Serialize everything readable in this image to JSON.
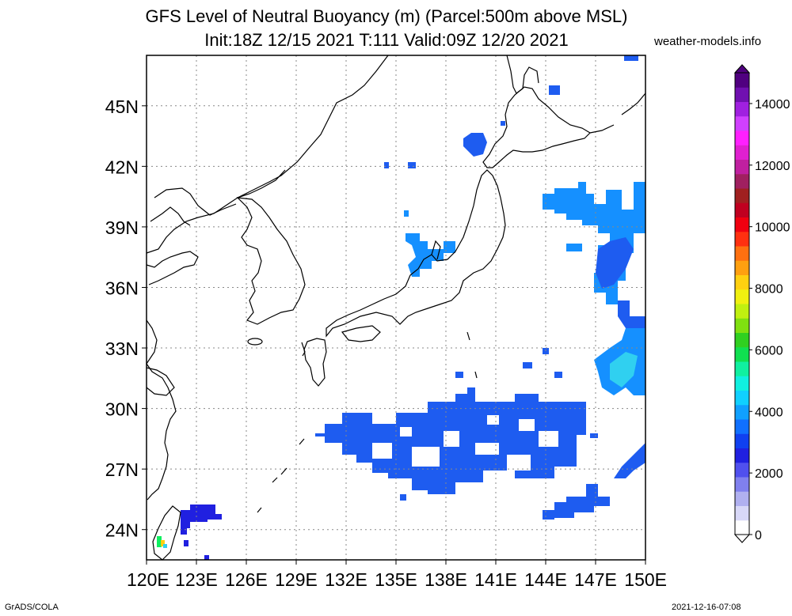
{
  "title": {
    "line1": "GFS Level of Neutral Buoyancy (m) (Parcel:500m above MSL)",
    "line2": "Init:18Z 12/15 2021 T:111 Valid:09Z 12/20 2021"
  },
  "credit": "weather-models.info",
  "footer": {
    "left": "GrADS/COLA",
    "right": "2021-12-16-07:08"
  },
  "map": {
    "lon_range": [
      120,
      150
    ],
    "lat_range": [
      22.5,
      47.5
    ],
    "lat_ticks": [
      {
        "value": 24,
        "label": "24N"
      },
      {
        "value": 27,
        "label": "27N"
      },
      {
        "value": 30,
        "label": "30N"
      },
      {
        "value": 33,
        "label": "33N"
      },
      {
        "value": 36,
        "label": "36N"
      },
      {
        "value": 39,
        "label": "39N"
      },
      {
        "value": 42,
        "label": "42N"
      },
      {
        "value": 45,
        "label": "45N"
      }
    ],
    "lon_ticks": [
      {
        "value": 120,
        "label": "120E"
      },
      {
        "value": 123,
        "label": "123E"
      },
      {
        "value": 126,
        "label": "126E"
      },
      {
        "value": 129,
        "label": "129E"
      },
      {
        "value": 132,
        "label": "132E"
      },
      {
        "value": 135,
        "label": "135E"
      },
      {
        "value": 138,
        "label": "138E"
      },
      {
        "value": 141,
        "label": "141E"
      },
      {
        "value": 144,
        "label": "144E"
      },
      {
        "value": 147,
        "label": "147E"
      },
      {
        "value": 150,
        "label": "150E"
      }
    ]
  },
  "colorbar": {
    "ticks": [
      {
        "value": 0,
        "label": "0"
      },
      {
        "value": 2000,
        "label": "2000"
      },
      {
        "value": 4000,
        "label": "4000"
      },
      {
        "value": 6000,
        "label": "6000"
      },
      {
        "value": 8000,
        "label": "8000"
      },
      {
        "value": 10000,
        "label": "10000"
      },
      {
        "value": 12000,
        "label": "12000"
      },
      {
        "value": 14000,
        "label": "14000"
      }
    ],
    "colors": [
      "#ffffff",
      "#d8d8f8",
      "#b0b0f0",
      "#8080ee",
      "#5050ee",
      "#2020e0",
      "#1040f0",
      "#1070ff",
      "#10a0ff",
      "#10d0ff",
      "#10f0e0",
      "#10f0a0",
      "#10e050",
      "#30d020",
      "#80e010",
      "#c0f010",
      "#f0f010",
      "#ffd010",
      "#ffa010",
      "#ff7010",
      "#ff3010",
      "#f00010",
      "#c00020",
      "#a02020",
      "#a02060",
      "#c020a0",
      "#e020d0",
      "#ff20ff",
      "#d040ff",
      "#a020e0",
      "#7010b0",
      "#500080"
    ]
  }
}
